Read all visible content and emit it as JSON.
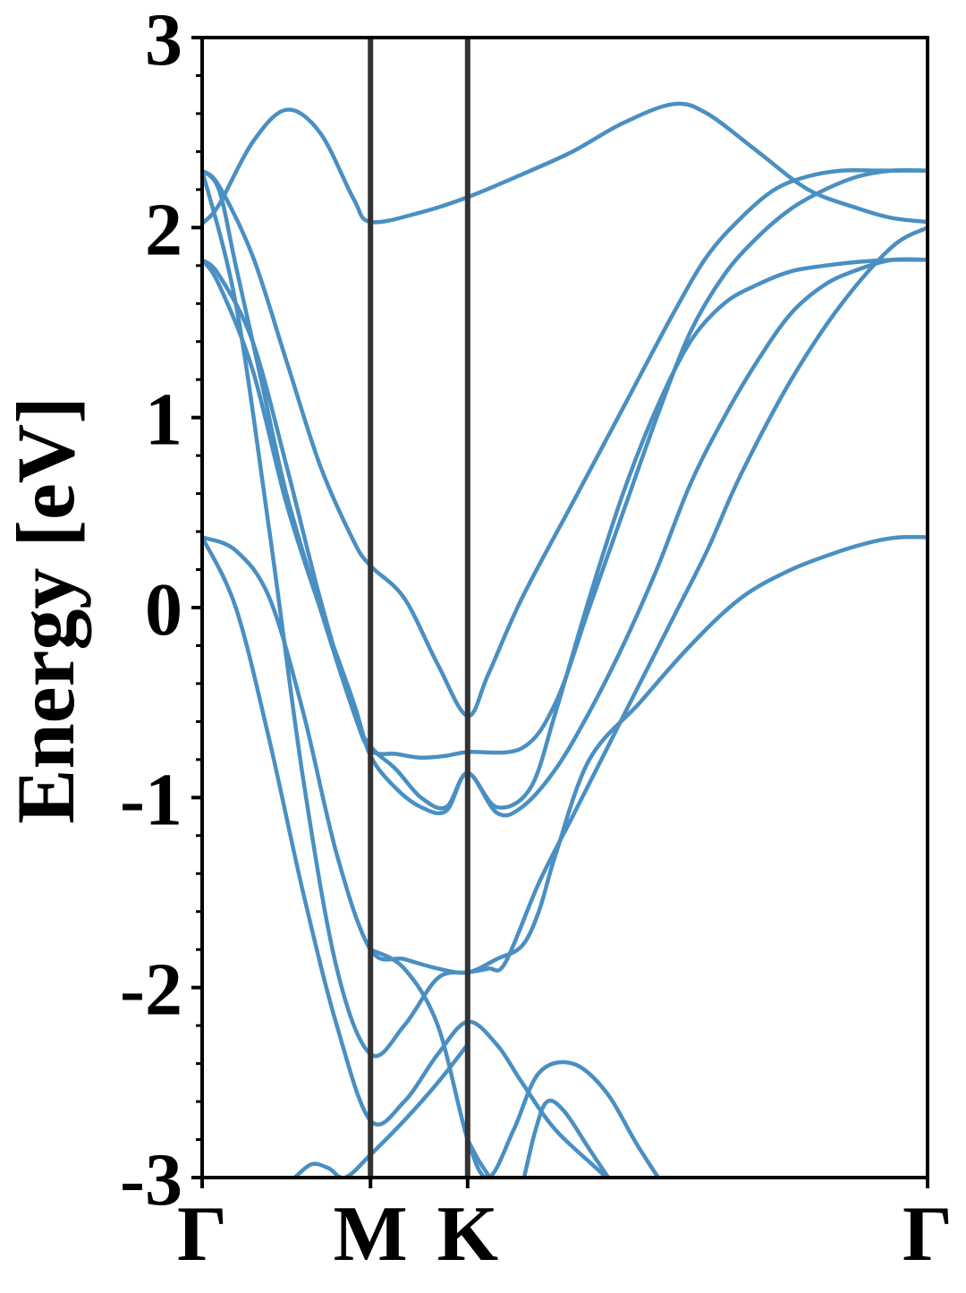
{
  "chart_data": {
    "type": "line",
    "title": "",
    "xlabel": "",
    "ylabel": "Energy [eV]",
    "ylim": [
      -3,
      3
    ],
    "yticks": [
      -3,
      -2,
      -1,
      0,
      1,
      2,
      3
    ],
    "ytick_labels": [
      "-3",
      "-2",
      "-1",
      "0",
      "1",
      "2",
      "3"
    ],
    "kpath": {
      "labels": [
        "Γ",
        "M",
        "K",
        "Γ"
      ],
      "positions": [
        0,
        1,
        1.577,
        4.309
      ]
    },
    "grid": false,
    "colors": {
      "band": "#4a8fc2",
      "divider": "#333333",
      "axes": "#000000"
    },
    "series": [
      {
        "x": [
          0.0,
          0.1,
          0.3,
          0.5,
          0.7,
          0.9,
          1.0,
          1.3,
          1.577,
          1.9,
          2.2,
          2.5,
          2.8,
          3.0,
          3.3,
          3.6,
          3.9,
          4.1,
          4.309
        ],
        "y": [
          2.02,
          2.12,
          2.45,
          2.62,
          2.5,
          2.15,
          2.03,
          2.08,
          2.16,
          2.28,
          2.4,
          2.55,
          2.65,
          2.6,
          2.4,
          2.2,
          2.1,
          2.05,
          2.03
        ]
      },
      {
        "x": [
          0.0,
          0.1,
          0.3,
          0.5,
          0.7,
          0.9,
          1.0,
          1.2,
          1.4,
          1.577,
          1.7,
          1.9,
          2.2,
          2.5,
          2.8,
          3.0,
          3.2,
          3.4,
          3.6,
          3.8,
          4.0,
          4.15,
          4.309
        ],
        "y": [
          2.3,
          2.22,
          1.85,
          1.3,
          0.75,
          0.35,
          0.22,
          0.05,
          -0.3,
          -0.57,
          -0.35,
          0.05,
          0.55,
          1.05,
          1.55,
          1.85,
          2.05,
          2.2,
          2.27,
          2.3,
          2.3,
          2.3,
          2.3
        ]
      },
      {
        "x": [
          0.0,
          0.1,
          0.2,
          0.35,
          0.5,
          0.7,
          0.9,
          1.0,
          1.15,
          1.3,
          1.45,
          1.577,
          1.9,
          2.1,
          2.3,
          2.5,
          2.7,
          2.9,
          3.1,
          3.3,
          3.5,
          3.7,
          3.9,
          4.1,
          4.309
        ],
        "y": [
          2.3,
          2.2,
          1.8,
          1.2,
          0.6,
          0.0,
          -0.55,
          -0.75,
          -0.77,
          -0.79,
          -0.78,
          -0.76,
          -0.74,
          -0.5,
          0.0,
          0.5,
          1.0,
          1.45,
          1.75,
          1.95,
          2.1,
          2.2,
          2.27,
          2.3,
          2.3
        ]
      },
      {
        "x": [
          0.0,
          0.1,
          0.3,
          0.5,
          0.7,
          0.9,
          1.0,
          1.15,
          1.3,
          1.45,
          1.577,
          1.75,
          1.95,
          2.1,
          2.3,
          2.5,
          2.7,
          2.9,
          3.1,
          3.3,
          3.5,
          3.7,
          3.9,
          4.1,
          4.309
        ],
        "y": [
          1.83,
          1.75,
          1.4,
          0.75,
          0.05,
          -0.55,
          -0.73,
          -0.85,
          -1.0,
          -1.05,
          -0.87,
          -1.05,
          -0.95,
          -0.55,
          0.05,
          0.6,
          1.05,
          1.4,
          1.6,
          1.7,
          1.77,
          1.8,
          1.82,
          1.83,
          1.83
        ]
      },
      {
        "x": [
          0.0,
          0.1,
          0.3,
          0.5,
          0.7,
          0.9,
          1.0,
          1.15,
          1.3,
          1.45,
          1.577,
          1.75,
          1.9,
          2.1,
          2.3,
          2.5,
          2.7,
          2.9,
          3.1,
          3.3,
          3.5,
          3.7,
          3.9,
          4.1,
          4.309
        ],
        "y": [
          1.83,
          1.7,
          1.25,
          0.55,
          0.0,
          -0.5,
          -0.78,
          -0.95,
          -1.05,
          -1.07,
          -0.87,
          -1.08,
          -1.05,
          -0.85,
          -0.55,
          -0.2,
          0.2,
          0.65,
          1.0,
          1.3,
          1.55,
          1.7,
          1.78,
          1.83,
          1.83
        ]
      },
      {
        "x": [
          0.0,
          0.2,
          0.4,
          0.6,
          0.8,
          1.0,
          1.2,
          1.4,
          1.577,
          1.75,
          1.9,
          2.0,
          2.1,
          2.3,
          2.6,
          2.9,
          3.2,
          3.5,
          3.8,
          4.0,
          4.15,
          4.309
        ],
        "y": [
          0.37,
          0.3,
          0.05,
          -0.55,
          -1.3,
          -1.8,
          -1.85,
          -1.9,
          -1.92,
          -1.85,
          -1.78,
          -1.6,
          -1.3,
          -0.8,
          -0.5,
          -0.2,
          0.05,
          0.2,
          0.3,
          0.35,
          0.37,
          0.37
        ]
      },
      {
        "x": [
          0.0,
          0.2,
          0.4,
          0.6,
          0.8,
          1.0,
          1.2,
          1.4,
          1.577,
          1.7,
          1.8,
          2.0,
          2.2,
          2.4,
          2.6,
          2.8,
          3.0,
          3.2,
          3.5,
          3.8,
          4.1,
          4.309
        ],
        "y": [
          2.3,
          1.6,
          0.4,
          -0.9,
          -1.9,
          -2.35,
          -2.2,
          -1.95,
          -1.92,
          -1.9,
          -1.87,
          -1.45,
          -1.1,
          -0.75,
          -0.4,
          -0.05,
          0.3,
          0.7,
          1.2,
          1.6,
          1.9,
          2.0
        ]
      },
      {
        "x": [
          0.0,
          0.2,
          0.4,
          0.6,
          0.8,
          1.0,
          1.2,
          1.4,
          1.577,
          1.75,
          1.9,
          2.1,
          2.4,
          2.6,
          2.8,
          3.0,
          3.2,
          3.4
        ],
        "y": [
          0.37,
          0.0,
          -0.7,
          -1.5,
          -2.2,
          -2.7,
          -2.6,
          -2.35,
          -2.18,
          -2.3,
          -2.5,
          -2.75,
          -3.0,
          -3.2,
          -3.4,
          -3.5,
          -3.5,
          -3.5
        ]
      },
      {
        "x": [
          1.0,
          1.2,
          1.4,
          1.577,
          1.7,
          1.85,
          2.0,
          2.2,
          2.4,
          2.6,
          2.8,
          3.0
        ],
        "y": [
          -1.8,
          -1.9,
          -2.2,
          -2.8,
          -3.0,
          -2.75,
          -2.45,
          -2.4,
          -2.55,
          -2.85,
          -3.1,
          -3.2
        ]
      },
      {
        "x": [
          0.55,
          0.65,
          0.75,
          0.85,
          1.0,
          1.2,
          1.4,
          1.577
        ],
        "y": [
          -3.0,
          -2.93,
          -2.95,
          -3.0,
          -2.88,
          -2.7,
          -2.5,
          -2.3
        ]
      },
      {
        "x": [
          1.577,
          1.65,
          1.75
        ],
        "y": [
          -2.8,
          -2.92,
          -3.05
        ]
      },
      {
        "x": [
          1.9,
          1.98,
          2.05,
          2.15,
          2.3,
          2.45
        ],
        "y": [
          -3.05,
          -2.75,
          -2.6,
          -2.65,
          -2.85,
          -3.05
        ]
      }
    ]
  }
}
